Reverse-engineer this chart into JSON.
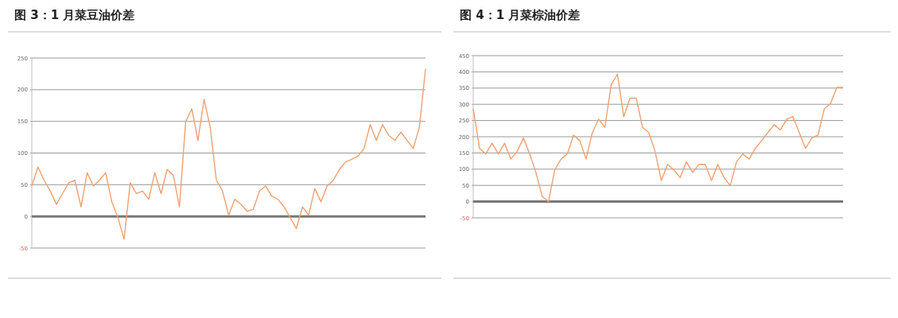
{
  "chart_data": [
    {
      "type": "line",
      "title": "图 3：1 月菜豆油价差",
      "color": "#f0a070",
      "grid": "y",
      "ylim": [
        -50,
        250
      ],
      "yticks": [
        -50,
        0,
        50,
        100,
        150,
        200,
        250
      ],
      "categories": [
        null,
        null,
        null,
        null,
        null,
        null,
        null,
        null,
        null,
        null,
        null,
        null,
        null,
        null,
        null,
        null,
        null,
        null,
        null,
        null,
        null,
        null,
        null,
        null,
        null,
        null,
        null,
        null,
        null,
        null,
        null,
        null,
        null,
        null,
        null,
        null,
        null,
        null,
        null,
        null,
        null,
        null,
        null,
        null,
        null,
        null,
        null,
        null,
        null,
        null,
        null,
        null,
        null,
        null,
        null,
        null,
        null,
        null,
        null,
        null,
        null,
        null,
        null,
        null,
        null
      ],
      "values": [
        48,
        78,
        57,
        40,
        19,
        36,
        53,
        57,
        15,
        69,
        48,
        57,
        69,
        23,
        -2,
        -36,
        53,
        36,
        40,
        27,
        69,
        36,
        74,
        65,
        15,
        149,
        170,
        120,
        185,
        141,
        57,
        40,
        2,
        27,
        19,
        8,
        11,
        40,
        48,
        32,
        27,
        15,
        -2,
        -19,
        15,
        2,
        44,
        23,
        48,
        57,
        74,
        86,
        90,
        95,
        107,
        145,
        120,
        145,
        128,
        120,
        133,
        120,
        107,
        141,
        233
      ]
    },
    {
      "type": "line",
      "title": "图 4：1 月菜棕油价差",
      "color": "#f0a070",
      "grid": "y",
      "ylim": [
        -50,
        450
      ],
      "yticks": [
        -50,
        0,
        50,
        100,
        150,
        200,
        250,
        300,
        350,
        400,
        450
      ],
      "categories": [
        null,
        null,
        null,
        null,
        null,
        null,
        null,
        null,
        null,
        null,
        null,
        null,
        null,
        null,
        null,
        null,
        null,
        null,
        null,
        null,
        null,
        null,
        null,
        null,
        null,
        null,
        null,
        null,
        null,
        null,
        null,
        null,
        null,
        null,
        null,
        null,
        null,
        null,
        null,
        null,
        null,
        null,
        null,
        null,
        null,
        null,
        null,
        null,
        null,
        null,
        null,
        null,
        null,
        null,
        null,
        null,
        null,
        null,
        null,
        null
      ],
      "values": [
        286,
        164,
        147,
        180,
        147,
        180,
        131,
        155,
        196,
        147,
        90,
        16,
        0,
        98,
        131,
        147,
        205,
        188,
        131,
        213,
        254,
        229,
        360,
        393,
        262,
        319,
        319,
        229,
        213,
        155,
        65,
        115,
        98,
        74,
        123,
        90,
        115,
        115,
        65,
        115,
        74,
        49,
        123,
        147,
        131,
        164,
        188,
        213,
        237,
        221,
        254,
        262,
        213,
        164,
        196,
        205,
        286,
        303,
        352,
        352
      ]
    }
  ]
}
